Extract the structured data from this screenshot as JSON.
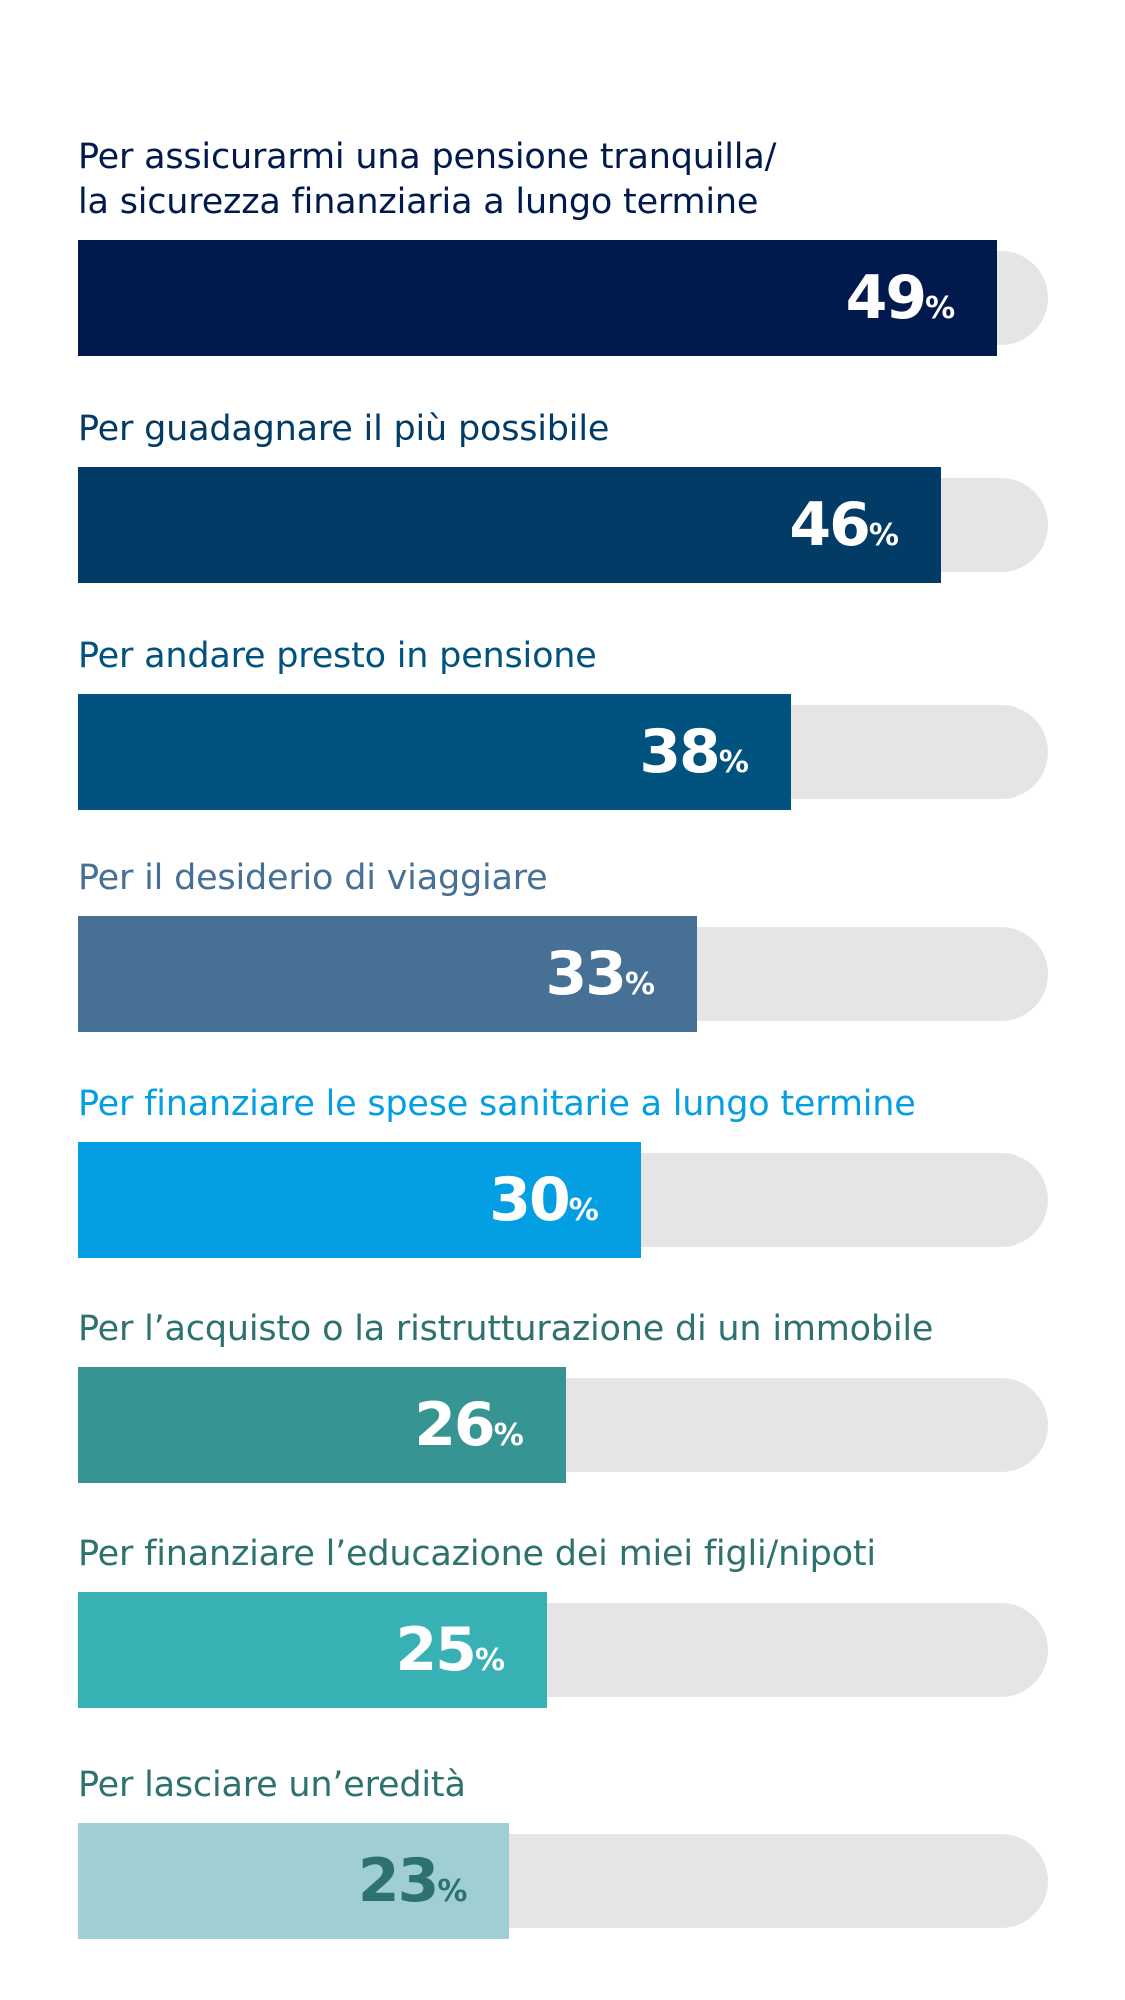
{
  "chart_data": {
    "type": "bar",
    "orientation": "horizontal",
    "xlim": [
      0,
      100
    ],
    "value_suffix": "%",
    "categories": [
      "Per assicurarmi una pensione tranquilla/\nla sicurezza finanziaria a lungo termine",
      "Per guadagnare il più possibile",
      "Per andare presto in pensione",
      "Per il desiderio di viaggiare",
      "Per finanziare le spese sanitarie a lungo termine",
      "Per l’acquisto o la ristrutturazione di un immobile",
      "Per finanziare l’educazione dei miei figli/nipoti",
      "Per lasciare un’eredità"
    ],
    "values": [
      49,
      46,
      38,
      33,
      30,
      26,
      25,
      23
    ],
    "bar_colors": [
      "#001a4d",
      "#023b65",
      "#00527f",
      "#467095",
      "#039fe2",
      "#369593",
      "#38b1b4",
      "#9fcfd3"
    ],
    "label_colors": [
      "#001a4d",
      "#023b65",
      "#00527f",
      "#467095",
      "#039fe2",
      "#2e7270",
      "#2e7270",
      "#2e7270"
    ],
    "value_text_colors": [
      "#ffffff",
      "#ffffff",
      "#ffffff",
      "#ffffff",
      "#ffffff",
      "#ffffff",
      "#ffffff",
      "#2e7270"
    ],
    "track_color": "#e5e5e5"
  }
}
